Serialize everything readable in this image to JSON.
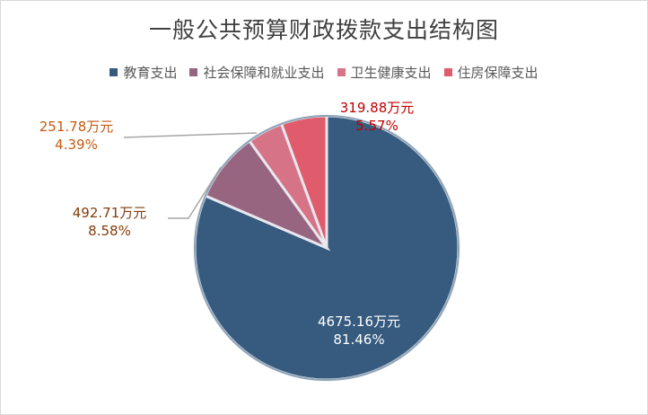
{
  "chart_data": {
    "type": "pie",
    "title": "一般公共预算财政拨款支出结构图",
    "legend_position": "top",
    "slices": [
      {
        "name": "教育支出",
        "value": 4675.16,
        "value_label": "4675.16万元",
        "percent_label": "81.46%",
        "color": "#365b7e",
        "label_color": "#ffffff"
      },
      {
        "name": "社会保障和就业支出",
        "value": 492.71,
        "value_label": "492.71万元",
        "percent_label": "8.58%",
        "color": "#986580",
        "label_color": "#833c0b"
      },
      {
        "name": "卫生健康支出",
        "value": 251.78,
        "value_label": "251.78万元",
        "percent_label": "4.39%",
        "color": "#d77386",
        "label_color": "#c55a11"
      },
      {
        "name": "住房保障支出",
        "value": 319.88,
        "value_label": "319.88万元",
        "percent_label": "5.57%",
        "color": "#e05c6c",
        "label_color": "#c00000"
      }
    ]
  }
}
